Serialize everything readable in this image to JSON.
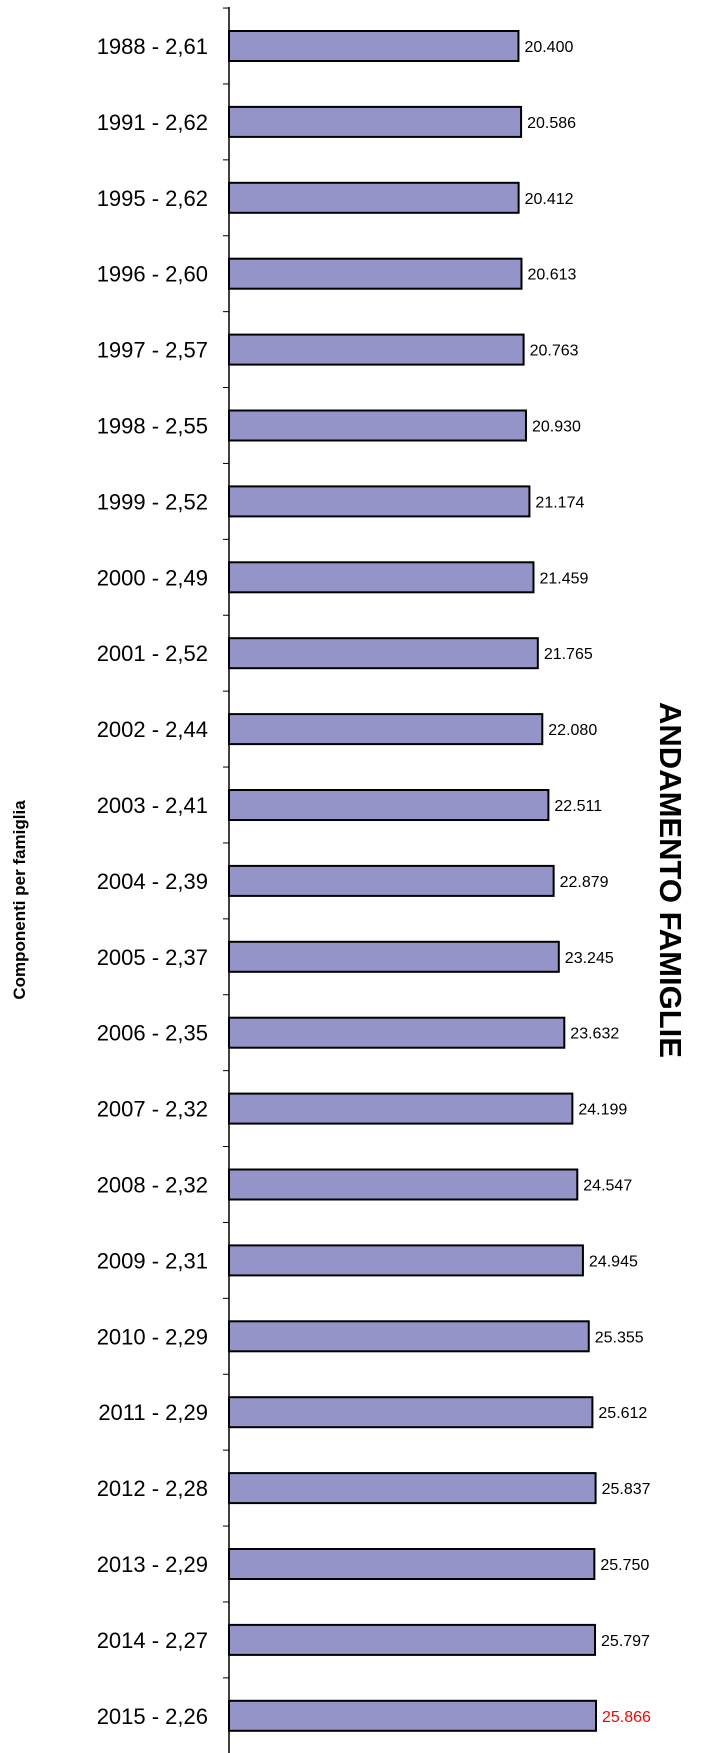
{
  "chart_data": {
    "type": "bar",
    "orientation": "horizontal",
    "title": "ANDAMENTO FAMIGLIE",
    "xlabel": "",
    "ylabel": "Componenti  per famiglia",
    "categories": [
      "1988 - 2,61",
      "1991 - 2,62",
      "1995 - 2,62",
      "1996 - 2,60",
      "1997 - 2,57",
      "1998 - 2,55",
      "1999 - 2,52",
      "2000 - 2,49",
      "2001 - 2,52",
      "2002 - 2,44",
      "2003 - 2,41",
      "2004 - 2,39",
      "2005 - 2,37",
      "2006 - 2,35",
      "2007 - 2,32",
      "2008 - 2,32",
      "2009 - 2,31",
      "2010 - 2,29",
      "2011 - 2,29",
      "2012 - 2,28",
      "2013 - 2,29",
      "2014 - 2,27",
      "2015 - 2,26"
    ],
    "values": [
      20400,
      20586,
      20412,
      20613,
      20763,
      20930,
      21174,
      21459,
      21765,
      22080,
      22511,
      22879,
      23245,
      23632,
      24199,
      24547,
      24945,
      25355,
      25612,
      25837,
      25750,
      25797,
      25866
    ],
    "value_labels": [
      "20.400",
      "20.586",
      "20.412",
      "20.613",
      "20.763",
      "20.930",
      "21.174",
      "21.459",
      "21.765",
      "22.080",
      "22.511",
      "22.879",
      "23.245",
      "23.632",
      "24.199",
      "24.547",
      "24.945",
      "25.355",
      "25.612",
      "25.837",
      "25.750",
      "25.797",
      "25.866"
    ],
    "highlight_index": 22,
    "xlim": [
      0,
      25866
    ],
    "grid": false,
    "legend": "none",
    "colors": {
      "bar_fill": "#9494c8",
      "bar_stroke": "#000000",
      "axis": "#000000",
      "label": "#000000",
      "highlight_label": "#ff0000"
    }
  }
}
